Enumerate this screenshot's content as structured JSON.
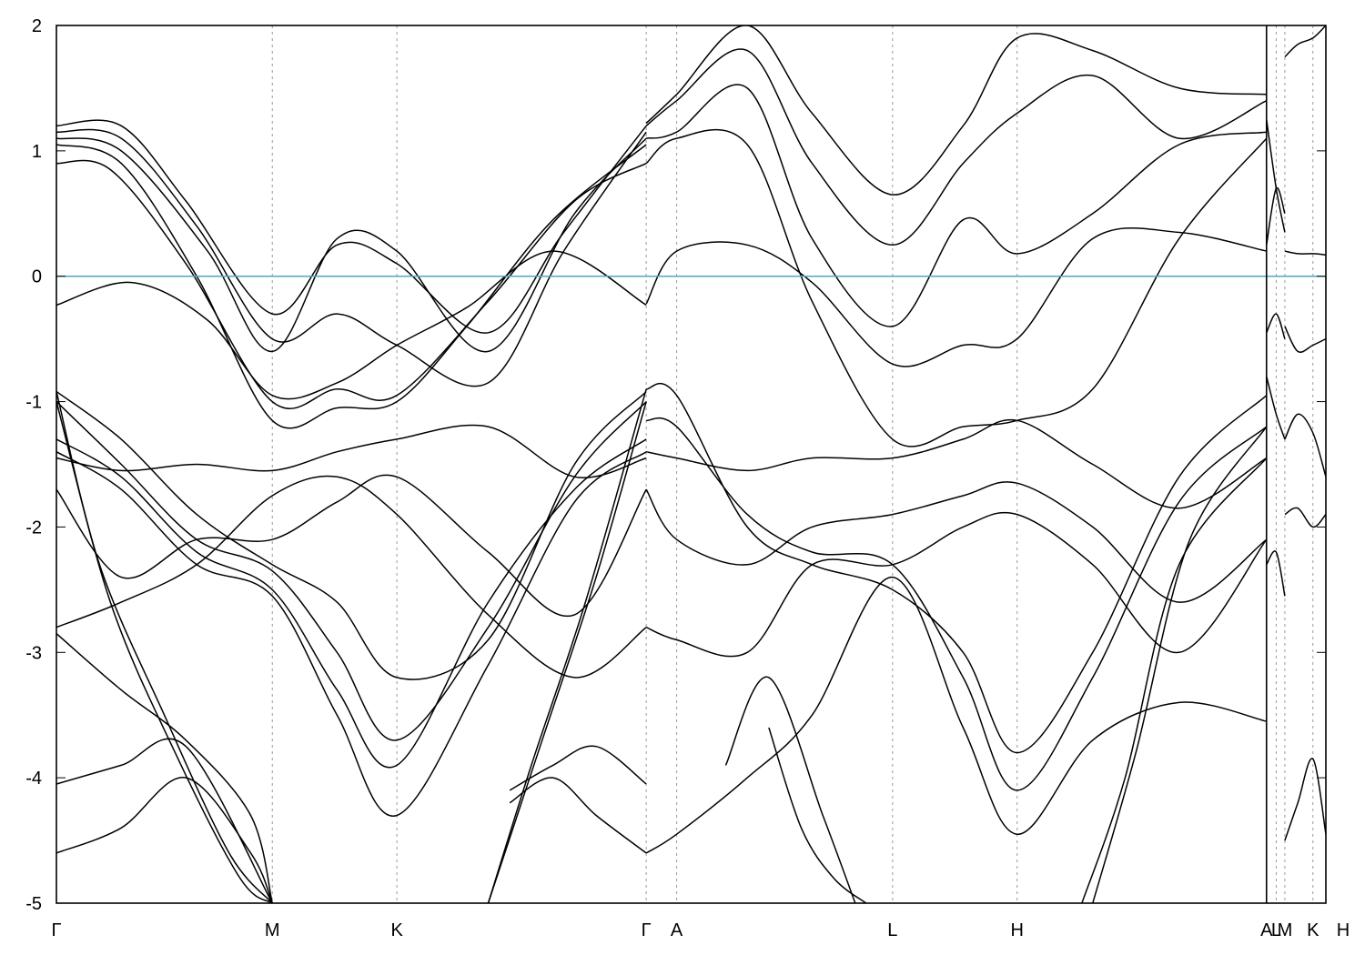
{
  "chart_data": {
    "type": "line",
    "title": "",
    "xlabel": "",
    "ylabel": "",
    "ylim": [
      -5,
      2
    ],
    "yticks": [
      "2",
      "1",
      "0",
      "-1",
      "-2",
      "-3",
      "-4",
      "-5"
    ],
    "yticks_values": [
      2,
      1,
      0,
      -1,
      -2,
      -3,
      -4,
      -5
    ],
    "grid": false,
    "legend": "none",
    "fermi_level": 0,
    "fermi_color": "#4ba9c8",
    "band_color": "#000000",
    "kpoints": [
      {
        "label": "Γ",
        "x": 0.0
      },
      {
        "label": "M",
        "x": 1.0
      },
      {
        "label": "K",
        "x": 1.577
      },
      {
        "label": "Γ",
        "x": 2.732
      },
      {
        "label": "A",
        "x": 2.873
      },
      {
        "label": "L",
        "x": 3.873
      },
      {
        "label": "H",
        "x": 4.45
      },
      {
        "label": "A",
        "x": 5.605
      },
      {
        "label": "L",
        "x": 5.65
      },
      {
        "label": "M",
        "x": 5.69
      },
      {
        "label": "K",
        "x": 5.82
      },
      {
        "label": "H",
        "x": 5.96
      }
    ],
    "xlim": [
      0,
      5.88
    ],
    "panel_break": 5.605,
    "series": [
      {
        "x": [
          0,
          0.35,
          0.7,
          1.0,
          1.3,
          1.577,
          1.9,
          2.3,
          2.732
        ],
        "y": [
          -0.23,
          -0.05,
          -0.35,
          -0.95,
          -0.85,
          -0.55,
          -0.25,
          0.2,
          -0.23
        ]
      },
      {
        "x": [
          0,
          0.25,
          0.6,
          1.0,
          1.3,
          1.577,
          2.0,
          2.4,
          2.732
        ],
        "y": [
          0.9,
          0.85,
          0.1,
          -1.0,
          -0.9,
          -0.95,
          -0.2,
          0.6,
          0.9
        ]
      },
      {
        "x": [
          0,
          0.3,
          0.65,
          1.0,
          1.3,
          1.577,
          1.9,
          2.3,
          2.732
        ],
        "y": [
          1.05,
          0.9,
          0.0,
          -1.15,
          -1.05,
          -1.0,
          -0.4,
          0.45,
          1.05
        ]
      },
      {
        "x": [
          0,
          0.3,
          0.7,
          1.0,
          1.3,
          1.577,
          2.0,
          2.4,
          2.732
        ],
        "y": [
          1.1,
          1.0,
          0.2,
          -0.6,
          0.3,
          0.2,
          -0.6,
          0.5,
          1.1
        ]
      },
      {
        "x": [
          0,
          0.3,
          0.65,
          1.0,
          1.3,
          1.577,
          2.0,
          2.35,
          2.732
        ],
        "y": [
          1.15,
          1.1,
          0.4,
          -0.5,
          -0.3,
          -0.55,
          -0.85,
          0.2,
          1.15
        ]
      },
      {
        "x": [
          0,
          0.3,
          0.6,
          1.0,
          1.3,
          1.577,
          2.0,
          2.35,
          2.732
        ],
        "y": [
          1.2,
          1.2,
          0.6,
          -0.3,
          0.25,
          0.1,
          -0.45,
          0.35,
          1.2
        ]
      },
      {
        "x": [
          0,
          0.3,
          0.65,
          1.0,
          1.3,
          1.577,
          2.0,
          2.4,
          2.732
        ],
        "y": [
          -0.92,
          -1.3,
          -1.9,
          -2.3,
          -2.6,
          -3.2,
          -2.9,
          -1.5,
          -0.92
        ]
      },
      {
        "x": [
          0,
          0.3,
          0.65,
          1.0,
          1.3,
          1.577,
          2.0,
          2.4,
          2.732
        ],
        "y": [
          -1.0,
          -1.5,
          -2.1,
          -2.35,
          -3.0,
          -3.7,
          -2.8,
          -1.6,
          -1.0
        ]
      },
      {
        "x": [
          0,
          0.3,
          0.65,
          1.0,
          1.3,
          1.577,
          2.0,
          2.4,
          2.732
        ],
        "y": [
          -1.3,
          -1.6,
          -2.2,
          -2.5,
          -3.3,
          -3.9,
          -2.6,
          -1.7,
          -1.3
        ]
      },
      {
        "x": [
          0,
          0.3,
          0.65,
          1.0,
          1.3,
          1.577,
          2.0,
          2.4,
          2.732
        ],
        "y": [
          -1.4,
          -1.7,
          -2.3,
          -2.55,
          -3.5,
          -4.3,
          -3.1,
          -1.8,
          -1.4
        ]
      },
      {
        "x": [
          0,
          0.3,
          0.65,
          1.0,
          1.3,
          1.577,
          2.0,
          2.4,
          2.732
        ],
        "y": [
          -1.45,
          -1.55,
          -1.5,
          -1.55,
          -1.4,
          -1.3,
          -1.2,
          -1.6,
          -1.45
        ]
      },
      {
        "x": [
          0,
          0.3,
          0.65,
          1.0,
          1.3,
          1.577,
          2.0,
          2.4,
          2.732
        ],
        "y": [
          -1.7,
          -2.4,
          -2.1,
          -2.1,
          -1.8,
          -1.6,
          -2.2,
          -2.7,
          -1.7
        ]
      },
      {
        "x": [
          0,
          0.3,
          0.65,
          1.0,
          1.3,
          1.577,
          2.0,
          2.4,
          2.732
        ],
        "y": [
          -2.8,
          -2.6,
          -2.3,
          -1.75,
          -1.6,
          -1.9,
          -2.7,
          -3.2,
          -2.8
        ]
      },
      {
        "x": [
          0,
          0.2,
          0.5,
          0.8,
          1.0
        ],
        "y": [
          -0.92,
          -2.3,
          -3.5,
          -4.6,
          -5.0
        ]
      },
      {
        "x": [
          0,
          0.25,
          0.55,
          0.85,
          1.0
        ],
        "y": [
          -1.0,
          -2.6,
          -3.8,
          -4.8,
          -5.0
        ]
      },
      {
        "x": [
          0,
          0.3,
          0.6,
          0.9,
          1.0
        ],
        "y": [
          -2.85,
          -3.3,
          -3.7,
          -4.3,
          -5.0
        ]
      },
      {
        "x": [
          0,
          0.3,
          0.6,
          1.0
        ],
        "y": [
          -4.05,
          -3.9,
          -3.75,
          -5.0
        ]
      },
      {
        "x": [
          0,
          0.3,
          0.6,
          0.9,
          1.0
        ],
        "y": [
          -4.6,
          -4.4,
          -4.0,
          -4.6,
          -5.0
        ]
      },
      {
        "x": [
          2.0,
          2.2,
          2.45,
          2.732
        ],
        "y": [
          -5.0,
          -3.9,
          -2.6,
          -0.9
        ]
      },
      {
        "x": [
          2.0,
          2.25,
          2.5,
          2.732
        ],
        "y": [
          -5.0,
          -3.7,
          -2.4,
          -1.0
        ]
      },
      {
        "x": [
          2.1,
          2.3,
          2.5,
          2.732
        ],
        "y": [
          -4.1,
          -3.9,
          -3.75,
          -4.05
        ]
      },
      {
        "x": [
          2.1,
          2.3,
          2.5,
          2.732
        ],
        "y": [
          -4.2,
          -4.0,
          -4.3,
          -4.6
        ]
      },
      {
        "x": [
          2.732,
          2.873,
          3.2,
          3.5,
          3.873,
          4.2,
          4.45,
          4.8,
          5.2,
          5.605
        ],
        "y": [
          -0.9,
          -0.95,
          -2.0,
          -2.3,
          -2.5,
          -3.0,
          -3.8,
          -3.0,
          -1.6,
          -0.95
        ]
      },
      {
        "x": [
          2.732,
          2.873,
          3.2,
          3.5,
          3.873,
          4.2,
          4.45,
          4.8,
          5.2,
          5.605
        ],
        "y": [
          -1.15,
          -1.2,
          -1.9,
          -2.2,
          -2.3,
          -3.2,
          -4.1,
          -3.2,
          -1.8,
          -1.2
        ]
      },
      {
        "x": [
          2.732,
          2.873,
          3.2,
          3.5,
          3.873,
          4.2,
          4.45,
          4.8,
          5.2,
          5.605
        ],
        "y": [
          -1.4,
          -1.45,
          -1.55,
          -1.45,
          -1.45,
          -1.3,
          -1.15,
          -1.5,
          -1.85,
          -1.45
        ]
      },
      {
        "x": [
          2.732,
          2.873,
          3.2,
          3.5,
          3.873,
          4.2,
          4.45,
          4.8,
          5.2,
          5.605
        ],
        "y": [
          -1.7,
          -2.1,
          -2.3,
          -2.0,
          -1.9,
          -1.75,
          -1.65,
          -2.0,
          -2.6,
          -2.1
        ]
      },
      {
        "x": [
          2.732,
          2.873,
          3.2,
          3.5,
          3.873,
          4.2,
          4.45,
          4.8,
          5.2,
          5.605
        ],
        "y": [
          -2.8,
          -2.9,
          -3.0,
          -2.3,
          -2.3,
          -2.0,
          -1.9,
          -2.3,
          -3.0,
          -2.1
        ]
      },
      {
        "x": [
          2.732,
          2.873,
          3.2,
          3.5,
          3.873,
          4.2,
          4.45,
          4.8,
          5.2,
          5.605
        ],
        "y": [
          -4.6,
          -4.45,
          -4.0,
          -3.5,
          -2.4,
          -3.6,
          -4.45,
          -3.7,
          -3.4,
          -3.55
        ]
      },
      {
        "x": [
          2.732,
          2.873,
          3.2,
          3.5,
          3.873,
          4.2,
          4.45,
          4.8,
          5.2,
          5.605
        ],
        "y": [
          -0.22,
          0.2,
          0.25,
          -0.05,
          -0.7,
          -0.55,
          -0.5,
          0.3,
          0.35,
          0.2
        ]
      },
      {
        "x": [
          2.732,
          2.873,
          3.2,
          3.5,
          3.873,
          4.2,
          4.45,
          4.8,
          5.2,
          5.605
        ],
        "y": [
          0.9,
          1.1,
          1.05,
          -0.2,
          -1.3,
          -1.2,
          -1.15,
          -0.9,
          0.3,
          1.1
        ]
      },
      {
        "x": [
          2.732,
          2.873,
          3.2,
          3.5,
          3.873,
          4.2,
          4.45,
          4.8,
          5.2,
          5.605
        ],
        "y": [
          1.1,
          1.15,
          1.5,
          0.3,
          -0.4,
          0.45,
          0.18,
          0.5,
          1.05,
          1.15
        ]
      },
      {
        "x": [
          2.732,
          2.873,
          3.2,
          3.5,
          3.873,
          4.2,
          4.45,
          4.8,
          5.2,
          5.605
        ],
        "y": [
          1.2,
          1.4,
          1.8,
          0.9,
          0.25,
          0.9,
          1.3,
          1.6,
          1.1,
          1.4
        ]
      },
      {
        "x": [
          2.732,
          2.873,
          3.2,
          3.5,
          3.873,
          4.2,
          4.45,
          4.8,
          5.2,
          5.605
        ],
        "y": [
          1.22,
          1.45,
          2.0,
          1.3,
          0.65,
          1.2,
          1.9,
          1.8,
          1.5,
          1.45
        ]
      },
      {
        "x": [
          3.1,
          3.3,
          3.55,
          3.7
        ],
        "y": [
          -3.9,
          -3.2,
          -4.3,
          -5.0
        ]
      },
      {
        "x": [
          3.3,
          3.45,
          3.6,
          3.75
        ],
        "y": [
          -3.6,
          -4.4,
          -4.8,
          -5.0
        ]
      },
      {
        "x": [
          4.75,
          4.95,
          5.2,
          5.605
        ],
        "y": [
          -5.0,
          -4.0,
          -2.3,
          -1.45
        ]
      },
      {
        "x": [
          4.8,
          5.0,
          5.25,
          5.605
        ],
        "y": [
          -5.0,
          -3.8,
          -2.1,
          -1.2
        ]
      },
      {
        "x": [
          5.605,
          5.65,
          5.69
        ],
        "y": [
          1.25,
          0.7,
          0.35
        ]
      },
      {
        "x": [
          5.605,
          5.65,
          5.69
        ],
        "y": [
          0.25,
          0.7,
          0.5
        ]
      },
      {
        "x": [
          5.605,
          5.65,
          5.69
        ],
        "y": [
          -0.45,
          -0.3,
          -0.5
        ]
      },
      {
        "x": [
          5.605,
          5.65,
          5.69
        ],
        "y": [
          -0.8,
          -1.1,
          -1.3
        ]
      },
      {
        "x": [
          5.605,
          5.65,
          5.69
        ],
        "y": [
          -2.3,
          -2.2,
          -2.55
        ]
      },
      {
        "x": [
          5.69,
          5.75,
          5.82,
          5.88
        ],
        "y": [
          -0.4,
          -0.6,
          -0.55,
          -0.5
        ]
      },
      {
        "x": [
          5.69,
          5.75,
          5.82,
          5.88
        ],
        "y": [
          -1.3,
          -1.1,
          -1.25,
          -1.6
        ]
      },
      {
        "x": [
          5.69,
          5.75,
          5.82,
          5.88
        ],
        "y": [
          -1.9,
          -1.85,
          -2.0,
          -1.9
        ]
      },
      {
        "x": [
          5.69,
          5.75,
          5.82,
          5.88
        ],
        "y": [
          -4.5,
          -4.2,
          -3.85,
          -4.45
        ]
      },
      {
        "x": [
          5.69,
          5.75,
          5.82,
          5.88
        ],
        "y": [
          1.75,
          1.85,
          1.9,
          2.0
        ]
      },
      {
        "x": [
          5.69,
          5.75,
          5.82,
          5.88
        ],
        "y": [
          0.2,
          0.18,
          0.18,
          0.17
        ]
      }
    ]
  }
}
